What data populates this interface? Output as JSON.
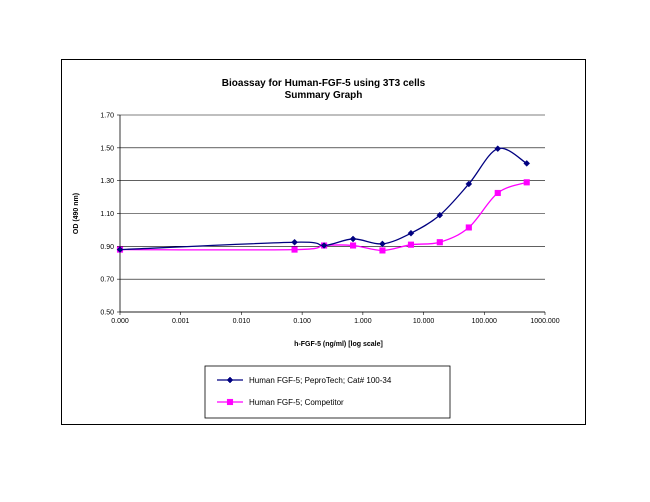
{
  "chart_data": {
    "type": "line",
    "title": "Bioassay for Human-FGF-5 using 3T3 cells",
    "subtitle": "Summary Graph",
    "xlabel": "h-FGF-5 (ng/ml) [log scale]",
    "ylabel": "OD (490 nm)",
    "x_scale": "log",
    "x_ticks": [
      "0.000",
      "0.001",
      "0.010",
      "0.100",
      "1.000",
      "10.000",
      "100.000",
      "1000.000"
    ],
    "y_ticks": [
      "0.50",
      "0.70",
      "0.90",
      "1.10",
      "1.30",
      "1.50",
      "1.70"
    ],
    "ylim": [
      0.5,
      1.7
    ],
    "grid": "horizontal",
    "legend_position": "bottom",
    "series": [
      {
        "name": "Human FGF-5; PeproTech; Cat# 100-34",
        "color": "#000080",
        "marker": "diamond",
        "x": [
          0.0001,
          0.075,
          0.23,
          0.69,
          2.1,
          6.2,
          18.5,
          55.6,
          166.7,
          500
        ],
        "y": [
          0.88,
          0.925,
          0.905,
          0.945,
          0.915,
          0.98,
          1.09,
          1.28,
          1.495,
          1.405
        ]
      },
      {
        "name": "Human FGF-5; Competitor",
        "color": "#ff00ff",
        "marker": "square",
        "x": [
          0.0001,
          0.075,
          0.23,
          0.69,
          2.1,
          6.2,
          18.5,
          55.6,
          166.7,
          500
        ],
        "y": [
          0.88,
          0.88,
          0.905,
          0.905,
          0.875,
          0.91,
          0.925,
          1.015,
          1.225,
          1.29
        ]
      }
    ]
  }
}
